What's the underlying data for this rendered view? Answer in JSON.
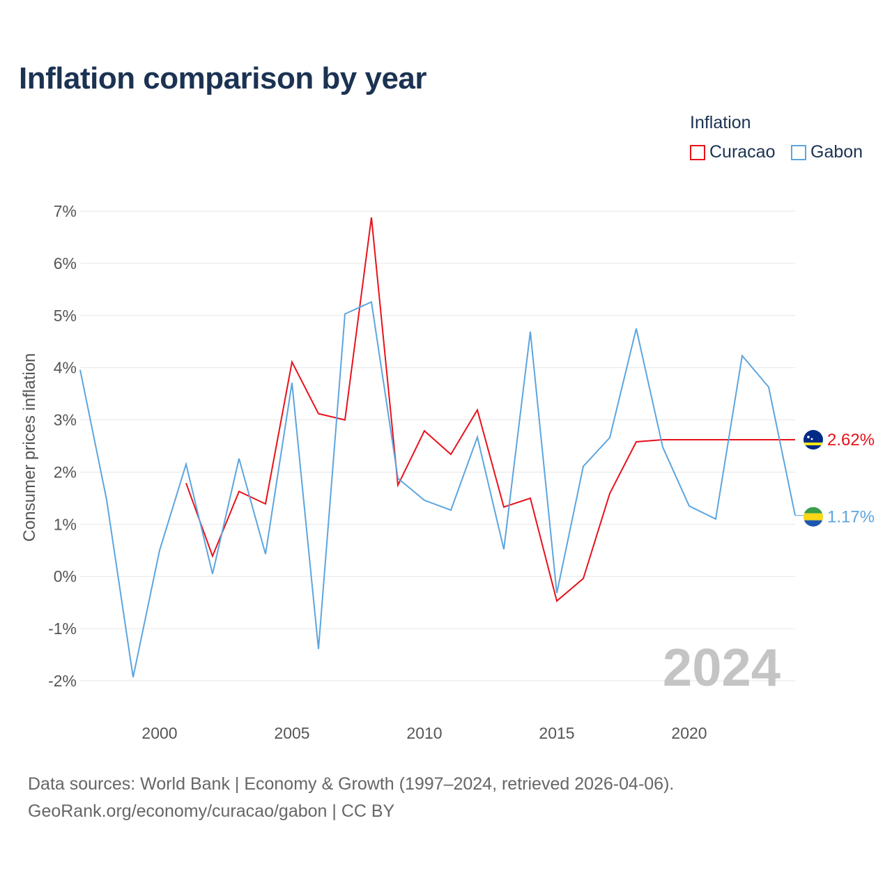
{
  "chart_data": {
    "type": "line",
    "title": "Inflation comparison by year",
    "ylabel": "Consumer prices inflation",
    "xlabel": "",
    "ylim": [
      -2,
      7
    ],
    "xlim": [
      1997,
      2024
    ],
    "y_ticks": [
      {
        "value": 7,
        "label": "7%"
      },
      {
        "value": 6,
        "label": "6%"
      },
      {
        "value": 5,
        "label": "5%"
      },
      {
        "value": 4,
        "label": "4%"
      },
      {
        "value": 3,
        "label": "3%"
      },
      {
        "value": 2,
        "label": "2%"
      },
      {
        "value": 1,
        "label": "1%"
      },
      {
        "value": 0,
        "label": "0%"
      },
      {
        "value": -1,
        "label": "-1%"
      },
      {
        "value": -2,
        "label": "-2%"
      }
    ],
    "x_ticks": [
      {
        "value": 2000,
        "label": "2000"
      },
      {
        "value": 2005,
        "label": "2005"
      },
      {
        "value": 2010,
        "label": "2010"
      },
      {
        "value": 2015,
        "label": "2015"
      },
      {
        "value": 2020,
        "label": "2020"
      }
    ],
    "legend_title": "Inflation",
    "year_display": "2024",
    "series": [
      {
        "name": "Curacao",
        "color": "#e8111a",
        "end_label": "2.62%",
        "end_value": 2.62,
        "flag": "curacao-flag",
        "points": [
          [
            2001,
            1.79
          ],
          [
            2002,
            0.39
          ],
          [
            2003,
            1.63
          ],
          [
            2004,
            1.39
          ],
          [
            2005,
            4.11
          ],
          [
            2006,
            3.12
          ],
          [
            2007,
            3.0
          ],
          [
            2008,
            6.88
          ],
          [
            2009,
            1.75
          ],
          [
            2010,
            2.79
          ],
          [
            2011,
            2.34
          ],
          [
            2012,
            3.19
          ],
          [
            2013,
            1.33
          ],
          [
            2014,
            1.5
          ],
          [
            2015,
            -0.47
          ],
          [
            2016,
            -0.04
          ],
          [
            2017,
            1.59
          ],
          [
            2018,
            2.58
          ],
          [
            2019,
            2.62
          ],
          [
            2024,
            2.62
          ]
        ]
      },
      {
        "name": "Gabon",
        "color": "#5ca5df",
        "end_label": "1.17%",
        "end_value": 1.17,
        "flag": "gabon-flag",
        "points": [
          [
            1997,
            3.96
          ],
          [
            1998,
            1.47
          ],
          [
            1999,
            -1.93
          ],
          [
            2000,
            0.5
          ],
          [
            2001,
            2.15
          ],
          [
            2002,
            0.05
          ],
          [
            2003,
            2.26
          ],
          [
            2004,
            0.43
          ],
          [
            2005,
            3.71
          ],
          [
            2006,
            -1.39
          ],
          [
            2007,
            5.03
          ],
          [
            2008,
            5.26
          ],
          [
            2009,
            1.88
          ],
          [
            2010,
            1.46
          ],
          [
            2011,
            1.27
          ],
          [
            2012,
            2.67
          ],
          [
            2013,
            0.52
          ],
          [
            2014,
            4.69
          ],
          [
            2015,
            -0.32
          ],
          [
            2016,
            2.11
          ],
          [
            2017,
            2.66
          ],
          [
            2018,
            4.75
          ],
          [
            2019,
            2.48
          ],
          [
            2020,
            1.35
          ],
          [
            2021,
            1.1
          ],
          [
            2022,
            4.23
          ],
          [
            2023,
            3.63
          ],
          [
            2024,
            1.17
          ]
        ]
      }
    ]
  },
  "footer": {
    "line1": "Data sources: World Bank | Economy & Growth (1997–2024, retrieved 2026-04-06).",
    "line2": "GeoRank.org/economy/curacao/gabon | CC BY"
  }
}
